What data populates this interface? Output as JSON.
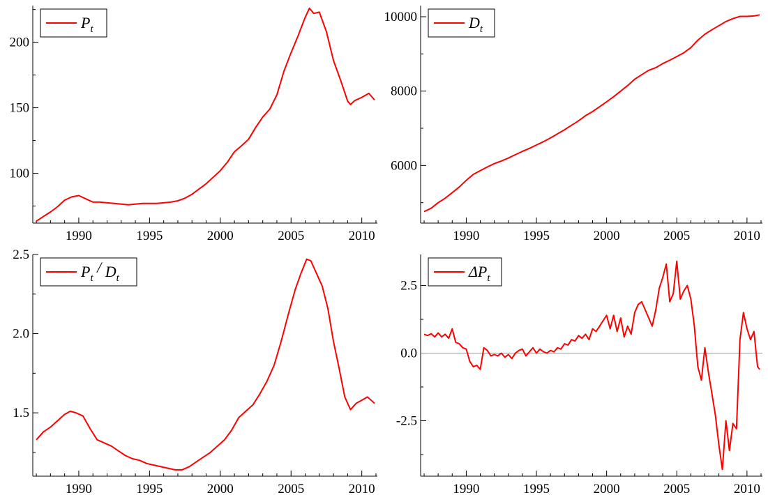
{
  "figure": {
    "line_color": "#ff0000",
    "axis_color": "#000000",
    "zero_line_color": "#999999"
  },
  "chart_data": [
    {
      "id": "price",
      "type": "line",
      "legend": {
        "symbol": "P",
        "sub": "t",
        "position": "top-left"
      },
      "xlim": [
        1986.75,
        2011.1
      ],
      "ylim": [
        62,
        228
      ],
      "x_ticks": [
        1990,
        1995,
        2000,
        2005,
        2010
      ],
      "x_tick_labels": [
        "1990",
        "1995",
        "2000",
        "2005",
        "2010"
      ],
      "y_ticks": [
        100,
        150,
        200
      ],
      "y_tick_labels": [
        "100",
        "150",
        "200"
      ],
      "series": [
        {
          "x": [
            1987.0,
            1987.5,
            1988.0,
            1988.5,
            1989.0,
            1989.5,
            1990.0,
            1990.5,
            1991.0,
            1991.5,
            1992.0,
            1992.5,
            1993.0,
            1993.5,
            1994.0,
            1994.5,
            1995.0,
            1995.5,
            1996.0,
            1996.5,
            1997.0,
            1997.5,
            1998.0,
            1998.5,
            1999.0,
            1999.5,
            2000.0,
            2000.5,
            2001.0,
            2001.5,
            2002.0,
            2002.5,
            2003.0,
            2003.5,
            2004.0,
            2004.5,
            2005.0,
            2005.5,
            2006.0,
            2006.3,
            2006.6,
            2007.0,
            2007.5,
            2008.0,
            2008.5,
            2009.0,
            2009.2,
            2009.5,
            2010.0,
            2010.5,
            2010.9
          ],
          "y": [
            63.5,
            67,
            70.5,
            74.5,
            79.5,
            82,
            83,
            80.5,
            78,
            78,
            77.5,
            77,
            76.5,
            76,
            76.5,
            77,
            77,
            77,
            77.5,
            78,
            79,
            81,
            84,
            88,
            92,
            97,
            102,
            108.5,
            116.5,
            121,
            126,
            135,
            143,
            149,
            160,
            178,
            192,
            205,
            219,
            226,
            222,
            223,
            208,
            186,
            171,
            155,
            152.5,
            155.5,
            158,
            161,
            156
          ]
        }
      ]
    },
    {
      "id": "dividend",
      "type": "line",
      "legend": {
        "symbol": "D",
        "sub": "t",
        "position": "top-left"
      },
      "xlim": [
        1986.75,
        2011.1
      ],
      "ylim": [
        4450,
        10300
      ],
      "x_ticks": [
        1990,
        1995,
        2000,
        2005,
        2010
      ],
      "x_tick_labels": [
        "1990",
        "1995",
        "2000",
        "2005",
        "2010"
      ],
      "y_ticks": [
        6000,
        8000,
        10000
      ],
      "y_tick_labels": [
        "6000",
        "8000",
        "10000"
      ],
      "series": [
        {
          "x": [
            1987.0,
            1987.5,
            1988.0,
            1988.5,
            1989.0,
            1989.5,
            1990.0,
            1990.5,
            1991.0,
            1991.5,
            1992.0,
            1992.5,
            1993.0,
            1993.5,
            1994.0,
            1994.5,
            1995.0,
            1995.5,
            1996.0,
            1996.5,
            1997.0,
            1997.5,
            1998.0,
            1998.5,
            1999.0,
            1999.5,
            2000.0,
            2000.5,
            2001.0,
            2001.5,
            2002.0,
            2002.5,
            2003.0,
            2003.5,
            2004.0,
            2004.5,
            2005.0,
            2005.5,
            2006.0,
            2006.5,
            2007.0,
            2007.5,
            2008.0,
            2008.5,
            2009.0,
            2009.5,
            2010.0,
            2010.5,
            2010.9
          ],
          "y": [
            4760,
            4850,
            5000,
            5120,
            5270,
            5420,
            5600,
            5760,
            5860,
            5960,
            6050,
            6120,
            6200,
            6290,
            6380,
            6460,
            6550,
            6640,
            6740,
            6850,
            6960,
            7080,
            7200,
            7340,
            7450,
            7580,
            7710,
            7850,
            8000,
            8150,
            8320,
            8440,
            8560,
            8630,
            8740,
            8830,
            8930,
            9030,
            9170,
            9370,
            9530,
            9650,
            9760,
            9870,
            9950,
            10010,
            10010,
            10020,
            10050
          ]
        }
      ]
    },
    {
      "id": "price-dividend-ratio",
      "type": "line",
      "legend": {
        "symbol": "P",
        "sub": "t",
        "separator": " / ",
        "symbol2": "D",
        "sub2": "t",
        "position": "top-left"
      },
      "xlim": [
        1986.75,
        2011.1
      ],
      "ylim": [
        1.1,
        2.5
      ],
      "x_ticks": [
        1990,
        1995,
        2000,
        2005,
        2010
      ],
      "x_tick_labels": [
        "1990",
        "1995",
        "2000",
        "2005",
        "2010"
      ],
      "y_ticks": [
        1.5,
        2.0,
        2.5
      ],
      "y_tick_labels": [
        "1.5",
        "2.0",
        "2.5"
      ],
      "series": [
        {
          "x": [
            1987.0,
            1987.5,
            1988.0,
            1988.5,
            1989.0,
            1989.4,
            1989.8,
            1990.3,
            1990.8,
            1991.3,
            1991.8,
            1992.3,
            1992.8,
            1993.3,
            1993.8,
            1994.3,
            1994.8,
            1995.3,
            1995.8,
            1996.3,
            1996.8,
            1997.3,
            1997.8,
            1998.3,
            1998.8,
            1999.3,
            1999.8,
            2000.3,
            2000.8,
            2001.3,
            2001.8,
            2002.3,
            2002.8,
            2003.3,
            2003.8,
            2004.3,
            2004.8,
            2005.3,
            2005.7,
            2006.1,
            2006.4,
            2006.8,
            2007.2,
            2007.6,
            2008.0,
            2008.4,
            2008.8,
            2009.2,
            2009.6,
            2010.0,
            2010.4,
            2010.9
          ],
          "y": [
            1.33,
            1.38,
            1.41,
            1.45,
            1.49,
            1.51,
            1.5,
            1.48,
            1.4,
            1.33,
            1.31,
            1.29,
            1.26,
            1.23,
            1.21,
            1.2,
            1.18,
            1.17,
            1.16,
            1.15,
            1.14,
            1.14,
            1.16,
            1.19,
            1.22,
            1.25,
            1.29,
            1.33,
            1.39,
            1.47,
            1.51,
            1.55,
            1.62,
            1.7,
            1.8,
            1.95,
            2.12,
            2.28,
            2.38,
            2.47,
            2.46,
            2.38,
            2.3,
            2.16,
            1.95,
            1.78,
            1.6,
            1.52,
            1.56,
            1.58,
            1.6,
            1.56
          ]
        }
      ]
    },
    {
      "id": "price-change",
      "type": "line",
      "legend": {
        "symbol": "ΔP",
        "sub": "t",
        "position": "top-left"
      },
      "xlim": [
        1986.75,
        2011.1
      ],
      "ylim": [
        -4.55,
        3.65
      ],
      "x_ticks": [
        1990,
        1995,
        2000,
        2005,
        2010
      ],
      "x_tick_labels": [
        "1990",
        "1995",
        "2000",
        "2005",
        "2010"
      ],
      "y_ticks": [
        -2.5,
        0.0,
        2.5
      ],
      "y_tick_labels": [
        "-2.5",
        "0.0",
        "2.5"
      ],
      "zero_line": true,
      "series": [
        {
          "x": [
            1987.0,
            1987.25,
            1987.5,
            1987.75,
            1988.0,
            1988.25,
            1988.5,
            1988.75,
            1989.0,
            1989.25,
            1989.5,
            1989.75,
            1990.0,
            1990.25,
            1990.5,
            1990.75,
            1991.0,
            1991.25,
            1991.5,
            1991.75,
            1992.0,
            1992.25,
            1992.5,
            1992.75,
            1993.0,
            1993.25,
            1993.5,
            1993.75,
            1994.0,
            1994.25,
            1994.5,
            1994.75,
            1995.0,
            1995.25,
            1995.5,
            1995.75,
            1996.0,
            1996.25,
            1996.5,
            1996.75,
            1997.0,
            1997.25,
            1997.5,
            1997.75,
            1998.0,
            1998.25,
            1998.5,
            1998.75,
            1999.0,
            1999.25,
            1999.5,
            1999.75,
            2000.0,
            2000.25,
            2000.5,
            2000.75,
            2001.0,
            2001.25,
            2001.5,
            2001.75,
            2002.0,
            2002.25,
            2002.5,
            2002.75,
            2003.0,
            2003.25,
            2003.5,
            2003.75,
            2004.0,
            2004.25,
            2004.5,
            2004.75,
            2005.0,
            2005.25,
            2005.5,
            2005.75,
            2006.0,
            2006.25,
            2006.5,
            2006.75,
            2007.0,
            2007.25,
            2007.5,
            2007.75,
            2008.0,
            2008.25,
            2008.5,
            2008.75,
            2009.0,
            2009.25,
            2009.5,
            2009.75,
            2010.0,
            2010.25,
            2010.5,
            2010.75,
            2010.9
          ],
          "y": [
            0.7,
            0.65,
            0.72,
            0.6,
            0.75,
            0.6,
            0.7,
            0.55,
            0.9,
            0.4,
            0.35,
            0.2,
            0.15,
            -0.3,
            -0.5,
            -0.45,
            -0.6,
            0.2,
            0.1,
            -0.1,
            -0.05,
            -0.1,
            0.0,
            -0.15,
            -0.05,
            -0.2,
            0.0,
            0.1,
            0.15,
            -0.1,
            0.05,
            0.2,
            0.0,
            0.15,
            0.05,
            0.0,
            0.1,
            0.05,
            0.2,
            0.15,
            0.35,
            0.3,
            0.5,
            0.45,
            0.65,
            0.55,
            0.7,
            0.5,
            0.9,
            0.8,
            1.0,
            1.2,
            1.4,
            0.9,
            1.4,
            0.8,
            1.3,
            0.6,
            1.0,
            0.7,
            1.5,
            1.8,
            1.9,
            1.6,
            1.3,
            1.0,
            1.6,
            2.4,
            2.8,
            3.3,
            1.9,
            2.2,
            3.4,
            2.0,
            2.3,
            2.5,
            2.0,
            1.0,
            -0.5,
            -1.0,
            0.2,
            -0.7,
            -1.5,
            -2.3,
            -3.4,
            -4.3,
            -2.5,
            -3.6,
            -2.6,
            -2.8,
            0.5,
            1.5,
            0.9,
            0.5,
            0.8,
            -0.5,
            -0.6
          ]
        }
      ]
    }
  ]
}
